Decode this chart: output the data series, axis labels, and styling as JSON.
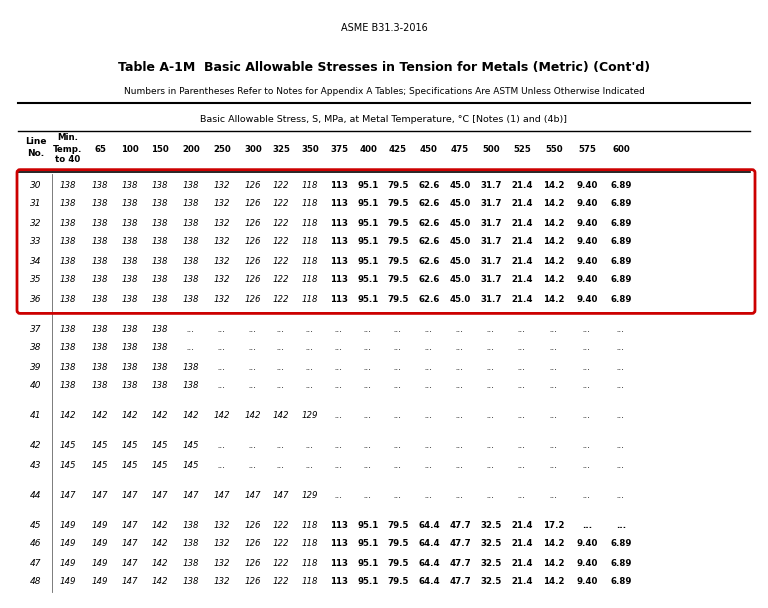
{
  "page_header": "ASME B31.3-2016",
  "table_title": "Table A-1M  Basic Allowable Stresses in Tension for Metals (Metric) (Cont'd)",
  "table_subtitle": "Numbers in Parentheses Refer to Notes for Appendix A Tables; Specifications Are ASTM Unless Otherwise Indicated",
  "stress_header": "Basic Allowable Stress, S, MPa, at Metal Temperature, °C [Notes (1) and (4b)]",
  "rows": [
    {
      "line": 30,
      "values": [
        "138",
        "138",
        "138",
        "138",
        "138",
        "132",
        "126",
        "122",
        "118",
        "113",
        "95.1",
        "79.5",
        "62.6",
        "45.0",
        "31.7",
        "21.4",
        "14.2",
        "9.40",
        "6.89"
      ],
      "bold_from": 9,
      "in_box": true
    },
    {
      "line": 31,
      "values": [
        "138",
        "138",
        "138",
        "138",
        "138",
        "132",
        "126",
        "122",
        "118",
        "113",
        "95.1",
        "79.5",
        "62.6",
        "45.0",
        "31.7",
        "21.4",
        "14.2",
        "9.40",
        "6.89"
      ],
      "bold_from": 9,
      "in_box": true
    },
    {
      "line": 32,
      "values": [
        "138",
        "138",
        "138",
        "138",
        "138",
        "132",
        "126",
        "122",
        "118",
        "113",
        "95.1",
        "79.5",
        "62.6",
        "45.0",
        "31.7",
        "21.4",
        "14.2",
        "9.40",
        "6.89"
      ],
      "bold_from": 9,
      "in_box": true
    },
    {
      "line": 33,
      "values": [
        "138",
        "138",
        "138",
        "138",
        "138",
        "132",
        "126",
        "122",
        "118",
        "113",
        "95.1",
        "79.5",
        "62.6",
        "45.0",
        "31.7",
        "21.4",
        "14.2",
        "9.40",
        "6.89"
      ],
      "bold_from": 9,
      "in_box": true
    },
    {
      "line": 34,
      "values": [
        "138",
        "138",
        "138",
        "138",
        "138",
        "132",
        "126",
        "122",
        "118",
        "113",
        "95.1",
        "79.5",
        "62.6",
        "45.0",
        "31.7",
        "21.4",
        "14.2",
        "9.40",
        "6.89"
      ],
      "bold_from": 9,
      "in_box": true
    },
    {
      "line": 35,
      "values": [
        "138",
        "138",
        "138",
        "138",
        "138",
        "132",
        "126",
        "122",
        "118",
        "113",
        "95.1",
        "79.5",
        "62.6",
        "45.0",
        "31.7",
        "21.4",
        "14.2",
        "9.40",
        "6.89"
      ],
      "bold_from": 9,
      "in_box": true
    },
    {
      "line": 36,
      "values": [
        "138",
        "138",
        "138",
        "138",
        "138",
        "132",
        "126",
        "122",
        "118",
        "113",
        "95.1",
        "79.5",
        "62.6",
        "45.0",
        "31.7",
        "21.4",
        "14.2",
        "9.40",
        "6.89"
      ],
      "bold_from": 9,
      "in_box": true
    },
    {
      "line": 37,
      "values": [
        "138",
        "138",
        "138",
        "138",
        "...",
        "...",
        "...",
        "...",
        "...",
        "...",
        "...",
        "...",
        "...",
        "...",
        "...",
        "...",
        "...",
        "...",
        "..."
      ],
      "bold_from": 99,
      "in_box": false
    },
    {
      "line": 38,
      "values": [
        "138",
        "138",
        "138",
        "138",
        "...",
        "...",
        "...",
        "...",
        "...",
        "...",
        "...",
        "...",
        "...",
        "...",
        "...",
        "...",
        "...",
        "...",
        "..."
      ],
      "bold_from": 99,
      "in_box": false
    },
    {
      "line": 39,
      "values": [
        "138",
        "138",
        "138",
        "138",
        "138",
        "...",
        "...",
        "...",
        "...",
        "...",
        "...",
        "...",
        "...",
        "...",
        "...",
        "...",
        "...",
        "...",
        "..."
      ],
      "bold_from": 99,
      "in_box": false
    },
    {
      "line": 40,
      "values": [
        "138",
        "138",
        "138",
        "138",
        "138",
        "...",
        "...",
        "...",
        "...",
        "...",
        "...",
        "...",
        "...",
        "...",
        "...",
        "...",
        "...",
        "...",
        "..."
      ],
      "bold_from": 99,
      "in_box": false
    },
    {
      "line": 41,
      "values": [
        "142",
        "142",
        "142",
        "142",
        "142",
        "142",
        "142",
        "142",
        "129",
        "...",
        "...",
        "...",
        "...",
        "...",
        "...",
        "...",
        "...",
        "...",
        "..."
      ],
      "bold_from": 99,
      "in_box": false
    },
    {
      "line": 42,
      "values": [
        "145",
        "145",
        "145",
        "145",
        "145",
        "...",
        "...",
        "...",
        "...",
        "...",
        "...",
        "...",
        "...",
        "...",
        "...",
        "...",
        "...",
        "...",
        "..."
      ],
      "bold_from": 99,
      "in_box": false
    },
    {
      "line": 43,
      "values": [
        "145",
        "145",
        "145",
        "145",
        "145",
        "...",
        "...",
        "...",
        "...",
        "...",
        "...",
        "...",
        "...",
        "...",
        "...",
        "...",
        "...",
        "...",
        "..."
      ],
      "bold_from": 99,
      "in_box": false
    },
    {
      "line": 44,
      "values": [
        "147",
        "147",
        "147",
        "147",
        "147",
        "147",
        "147",
        "147",
        "129",
        "...",
        "...",
        "...",
        "...",
        "...",
        "...",
        "...",
        "...",
        "...",
        "..."
      ],
      "bold_from": 99,
      "in_box": false
    },
    {
      "line": 45,
      "values": [
        "149",
        "149",
        "147",
        "142",
        "138",
        "132",
        "126",
        "122",
        "118",
        "113",
        "95.1",
        "79.5",
        "64.4",
        "47.7",
        "32.5",
        "21.4",
        "17.2",
        "...",
        "..."
      ],
      "bold_from": 9,
      "in_box": false
    },
    {
      "line": 46,
      "values": [
        "149",
        "149",
        "147",
        "142",
        "138",
        "132",
        "126",
        "122",
        "118",
        "113",
        "95.1",
        "79.5",
        "64.4",
        "47.7",
        "32.5",
        "21.4",
        "14.2",
        "9.40",
        "6.89"
      ],
      "bold_from": 9,
      "in_box": false
    },
    {
      "line": 47,
      "values": [
        "149",
        "149",
        "147",
        "142",
        "138",
        "132",
        "126",
        "122",
        "118",
        "113",
        "95.1",
        "79.5",
        "64.4",
        "47.7",
        "32.5",
        "21.4",
        "14.2",
        "9.40",
        "6.89"
      ],
      "bold_from": 9,
      "in_box": false
    },
    {
      "line": 48,
      "values": [
        "149",
        "149",
        "147",
        "142",
        "138",
        "132",
        "126",
        "122",
        "118",
        "113",
        "95.1",
        "79.5",
        "64.4",
        "47.7",
        "32.5",
        "21.4",
        "14.2",
        "9.40",
        "6.89"
      ],
      "bold_from": 9,
      "in_box": false
    }
  ],
  "gap_after_lines": [
    36,
    40,
    41,
    43,
    44
  ],
  "background_color": "#ffffff",
  "box_color": "#cc0000"
}
